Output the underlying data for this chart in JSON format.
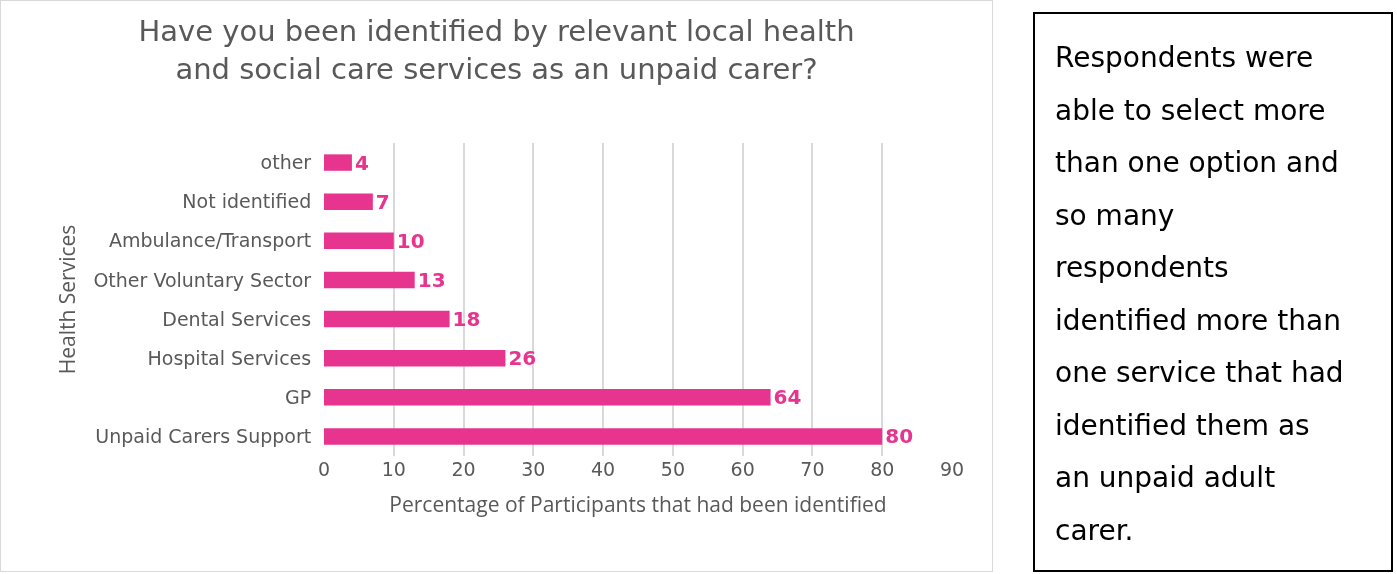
{
  "chart_data": {
    "type": "bar",
    "orientation": "horizontal",
    "title": "Have you been identified by relevant local health and social care services as an unpaid carer?",
    "xlabel": "Percentage of Participants that had been identified",
    "ylabel": "Health Services",
    "categories": [
      "other",
      "Not identified",
      "Ambulance/Transport",
      "Other Voluntary Sector",
      "Dental Services",
      "Hospital Services",
      "GP",
      "Unpaid Carers Support"
    ],
    "values": [
      4,
      7,
      10,
      13,
      18,
      26,
      64,
      80
    ],
    "color": "#e6348f",
    "data_labels": true,
    "xlim": [
      0,
      90
    ],
    "xticks": [
      0,
      10,
      20,
      30,
      40,
      50,
      60,
      70,
      80,
      90
    ],
    "grid": "x",
    "annotations": [
      "Respondents were able to select more than one option and so many respondents identified more than one service that had identified them as an unpaid adult carer."
    ]
  }
}
